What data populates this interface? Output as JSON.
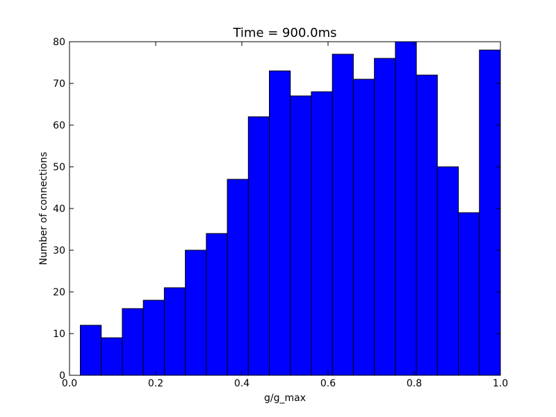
{
  "chart_data": {
    "type": "bar",
    "title": "Time = 900.0ms",
    "xlabel": "g/g_max",
    "ylabel": "Number of connections",
    "xlim": [
      0.0,
      1.0
    ],
    "ylim": [
      0,
      80
    ],
    "xticks": [
      "0.0",
      "0.2",
      "0.4",
      "0.6",
      "0.8",
      "1.0"
    ],
    "yticks": [
      "0",
      "10",
      "20",
      "30",
      "40",
      "50",
      "60",
      "70",
      "80"
    ],
    "bin_edges": [
      0.025,
      0.07375,
      0.1225,
      0.17125,
      0.22,
      0.26875,
      0.3175,
      0.36625,
      0.415,
      0.46375,
      0.5125,
      0.56125,
      0.61,
      0.65875,
      0.7075,
      0.75625,
      0.805,
      0.85375,
      0.9025,
      0.95125,
      1.0
    ],
    "values": [
      12,
      9,
      16,
      18,
      21,
      30,
      34,
      47,
      62,
      73,
      67,
      68,
      77,
      71,
      76,
      80,
      72,
      50,
      39,
      78
    ],
    "bar_color": "#0000ff",
    "grid": false
  }
}
